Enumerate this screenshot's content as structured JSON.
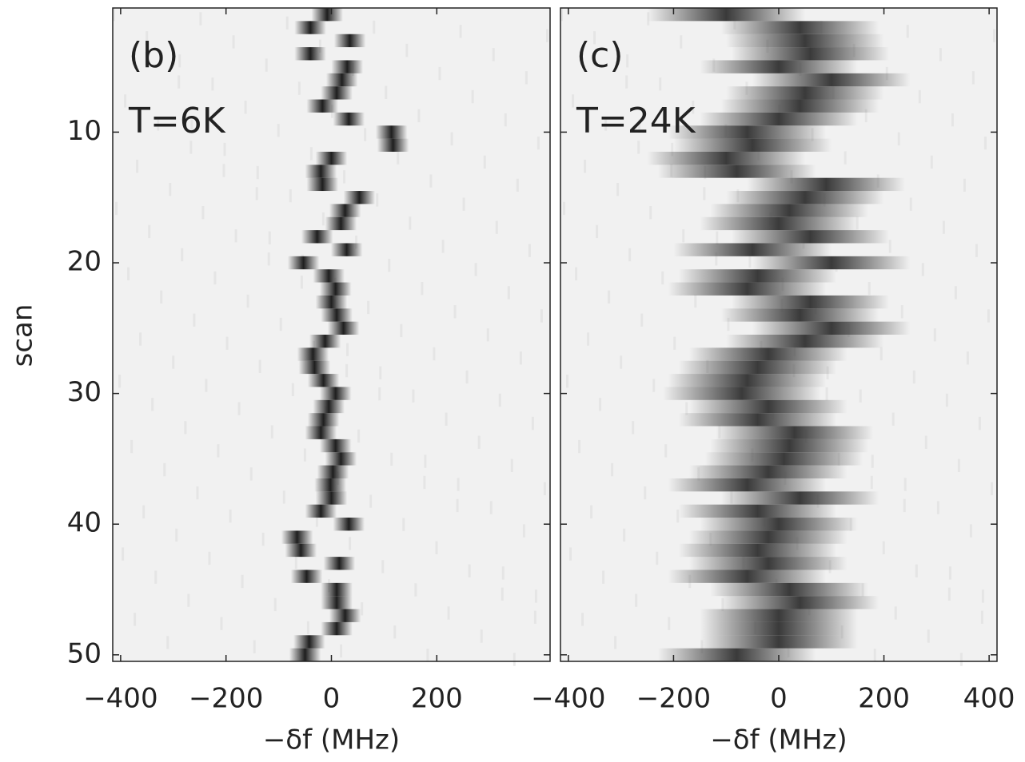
{
  "chart_data": [
    {
      "type": "heatmap",
      "annotations": [
        "(b)",
        "T=6K"
      ],
      "xlabel": "−δf (MHz)",
      "ylabel": "scan",
      "color": "#1e1e1e",
      "peak_width": 30,
      "scan": [
        1,
        2,
        3,
        4,
        5,
        6,
        7,
        8,
        9,
        10,
        11,
        12,
        13,
        14,
        15,
        16,
        17,
        18,
        19,
        20,
        21,
        22,
        23,
        24,
        25,
        26,
        27,
        28,
        29,
        30,
        31,
        32,
        33,
        34,
        35,
        36,
        37,
        38,
        39,
        40,
        41,
        42,
        43,
        44,
        45,
        46,
        47,
        48,
        49,
        50
      ],
      "peak": [
        -8,
        -40,
        35,
        -40,
        30,
        20,
        10,
        -17,
        33,
        114,
        117,
        0,
        -20,
        -17,
        53,
        26,
        18,
        -27,
        29,
        -53,
        -5,
        8,
        0,
        10,
        23,
        -12,
        -35,
        -32,
        -15,
        8,
        -5,
        -15,
        -20,
        8,
        18,
        3,
        -2,
        0,
        -20,
        33,
        -65,
        -58,
        15,
        -47,
        10,
        10,
        26,
        10,
        -42,
        -50
      ],
      "xlim": [
        -415,
        415
      ],
      "ylim": [
        0.5,
        50.5
      ],
      "xticks": [
        {
          "value": -400,
          "label": "−400"
        },
        {
          "value": -200,
          "label": "−200"
        },
        0,
        200
      ],
      "yticks": [
        10,
        20,
        30,
        40,
        50
      ]
    },
    {
      "type": "heatmap",
      "annotations": [
        "(c)",
        "T=24K"
      ],
      "xlabel": "−δf (MHz)",
      "color": "#3a3a3a",
      "peak_width": 150,
      "scan": [
        1,
        2,
        3,
        4,
        5,
        6,
        7,
        8,
        9,
        10,
        11,
        12,
        13,
        14,
        15,
        16,
        17,
        18,
        19,
        20,
        21,
        22,
        23,
        24,
        25,
        26,
        27,
        28,
        29,
        30,
        31,
        32,
        33,
        34,
        35,
        36,
        37,
        38,
        39,
        40,
        41,
        42,
        43,
        44,
        45,
        46,
        47,
        48,
        49,
        50
      ],
      "peak": [
        -100,
        40,
        50,
        60,
        0,
        100,
        50,
        40,
        0,
        -60,
        -50,
        -100,
        -80,
        90,
        50,
        20,
        0,
        60,
        -50,
        100,
        -40,
        -60,
        60,
        40,
        100,
        50,
        -20,
        -40,
        -60,
        -70,
        -20,
        -40,
        30,
        20,
        10,
        -20,
        -60,
        40,
        -40,
        0,
        -20,
        -40,
        -20,
        -60,
        20,
        40,
        0,
        0,
        0,
        -80
      ],
      "xlim": [
        -415,
        415
      ],
      "ylim": [
        0.5,
        50.5
      ],
      "xticks": [
        {
          "value": -400,
          "label": "−400"
        },
        {
          "value": -200,
          "label": "−200"
        },
        0,
        200,
        400
      ],
      "yticks": [
        10,
        20,
        30,
        40,
        50
      ]
    }
  ]
}
